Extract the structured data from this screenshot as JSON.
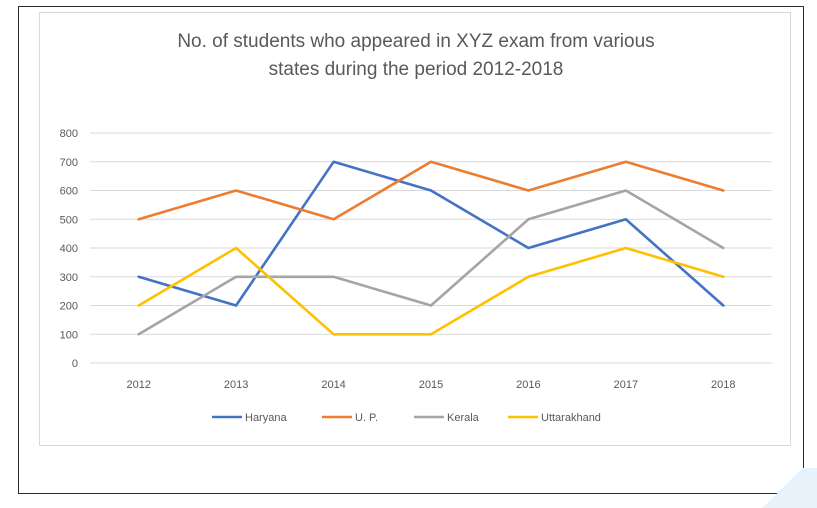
{
  "chart_data": {
    "type": "line",
    "title_lines": [
      "No. of students who appeared in XYZ exam from various",
      "states during the period 2012-2018"
    ],
    "xlabel": "",
    "ylabel": "",
    "categories": [
      "2012",
      "2013",
      "2014",
      "2015",
      "2016",
      "2017",
      "2018"
    ],
    "ylim": [
      0,
      800
    ],
    "yticks": [
      "0",
      "100",
      "200",
      "300",
      "400",
      "500",
      "600",
      "700",
      "800"
    ],
    "grid": true,
    "legend_position": "bottom",
    "series": [
      {
        "name": "Haryana",
        "color": "#4472C4",
        "values": [
          300,
          200,
          700,
          600,
          400,
          500,
          200
        ]
      },
      {
        "name": "U. P.",
        "color": "#ED7D31",
        "values": [
          500,
          600,
          500,
          700,
          600,
          700,
          600
        ]
      },
      {
        "name": "Kerala",
        "color": "#A5A5A5",
        "values": [
          100,
          300,
          300,
          200,
          500,
          600,
          400
        ]
      },
      {
        "name": "Uttarakhand",
        "color": "#FFC000",
        "values": [
          200,
          400,
          100,
          100,
          300,
          400,
          300
        ]
      }
    ]
  }
}
